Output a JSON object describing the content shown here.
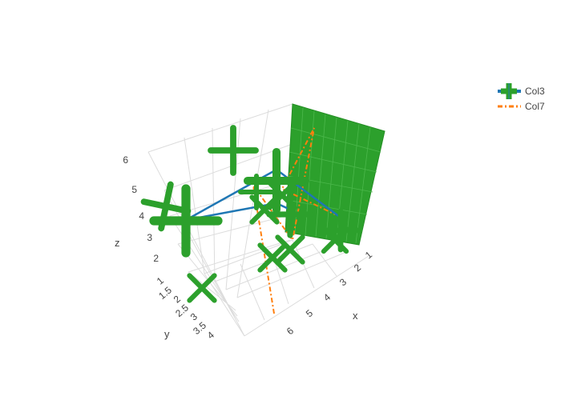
{
  "chart_data": {
    "type": "scatter3d",
    "axes": {
      "x": {
        "label": "x",
        "ticks": [
          "1",
          "2",
          "3",
          "4",
          "5",
          "6"
        ]
      },
      "y": {
        "label": "y",
        "ticks": [
          "1",
          "1.5",
          "2",
          "2.5",
          "3",
          "3.5",
          "4"
        ]
      },
      "z": {
        "label": "z",
        "ticks": [
          "2",
          "3",
          "4",
          "5",
          "6"
        ]
      }
    },
    "grid": true,
    "legend_position": "top-right",
    "series": [
      {
        "name": "Col3",
        "mode": "lines+markers",
        "line_color": "#1f77b4",
        "marker_color": "#2ca02c",
        "marker_symbol": "cross"
      },
      {
        "name": "Col7",
        "mode": "lines",
        "line_color": "#ff7f0e",
        "line_dash": "dashdot"
      }
    ],
    "surface_color": "#2ca02c"
  }
}
